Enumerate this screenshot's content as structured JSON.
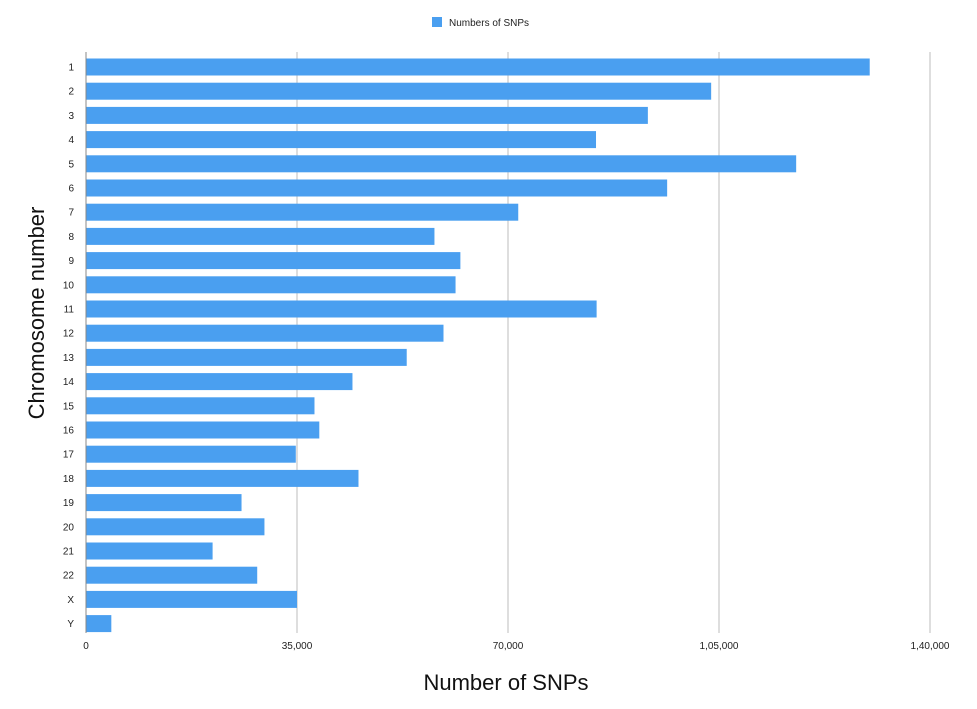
{
  "chart_data": {
    "type": "bar",
    "orientation": "horizontal",
    "categories": [
      "1",
      "2",
      "3",
      "4",
      "5",
      "6",
      "7",
      "8",
      "9",
      "10",
      "11",
      "12",
      "13",
      "14",
      "15",
      "16",
      "17",
      "18",
      "19",
      "20",
      "21",
      "22",
      "X",
      "Y"
    ],
    "series": [
      {
        "name": "Numbers of SNPs",
        "color": "#4a9ff0",
        "values": [
          130000,
          103700,
          93200,
          84600,
          117800,
          96400,
          71700,
          57800,
          62100,
          61300,
          84700,
          59300,
          53200,
          44200,
          37900,
          38700,
          34800,
          45200,
          25800,
          29600,
          21000,
          28400,
          35000,
          4200
        ]
      }
    ],
    "xlabel": "Number of SNPs",
    "ylabel": "Chromosome number",
    "xlim": [
      0,
      140000
    ],
    "x_ticks": [
      0,
      35000,
      70000,
      105000,
      140000
    ],
    "x_tick_labels": [
      "0",
      "35,000",
      "70,000",
      "1,05,000",
      "1,40,000"
    ],
    "grid": "vertical",
    "legend_position": "top-center",
    "gridline_color": "#bdbdbd"
  }
}
